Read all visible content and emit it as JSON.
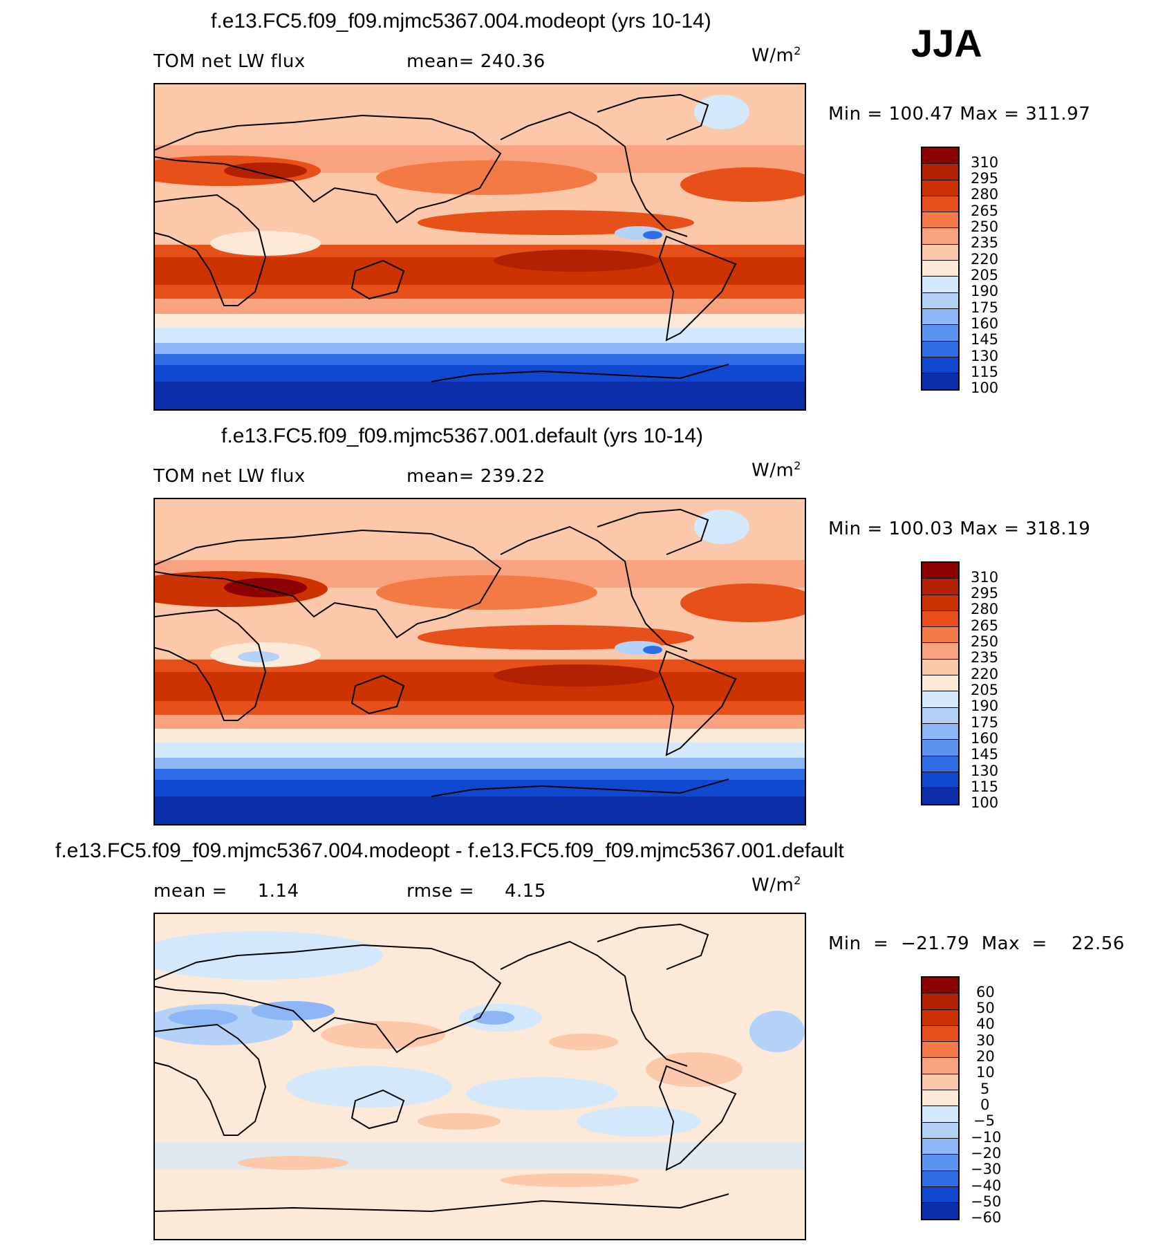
{
  "season": "JJA",
  "panels": [
    {
      "title": "f.e13.FC5.f09_f09.mjmc5367.004.modeopt (yrs 10-14)",
      "left_label": "TOM net LW flux",
      "center_label": "mean= 240.36",
      "units": "W/m",
      "units_sup": "2",
      "minmax": "Min  =  100.47  Max  =  311.97",
      "colorbar": {
        "labels": [
          "310",
          "295",
          "280",
          "265",
          "250",
          "235",
          "220",
          "205",
          "190",
          "175",
          "160",
          "145",
          "130",
          "115",
          "100"
        ],
        "colors": [
          "#8b0000",
          "#b22200",
          "#cc3300",
          "#e8501a",
          "#f47a45",
          "#f9a27f",
          "#fcc8aa",
          "#fde9d7",
          "#d3e8fa",
          "#b4d2f8",
          "#8cb6f5",
          "#5a93f0",
          "#2f6de6",
          "#1048d0",
          "#0a2fa8",
          "#061f80"
        ]
      }
    },
    {
      "title": "f.e13.FC5.f09_f09.mjmc5367.001.default (yrs 10-14)",
      "left_label": "TOM net LW flux",
      "center_label": "mean= 239.22",
      "units": "W/m",
      "units_sup": "2",
      "minmax": "Min  =  100.03  Max  =  318.19",
      "colorbar": {
        "labels": [
          "310",
          "295",
          "280",
          "265",
          "250",
          "235",
          "220",
          "205",
          "190",
          "175",
          "160",
          "145",
          "130",
          "115",
          "100"
        ],
        "colors": [
          "#8b0000",
          "#b22200",
          "#cc3300",
          "#e8501a",
          "#f47a45",
          "#f9a27f",
          "#fcc8aa",
          "#fde9d7",
          "#d3e8fa",
          "#b4d2f8",
          "#8cb6f5",
          "#5a93f0",
          "#2f6de6",
          "#1048d0",
          "#0a2fa8",
          "#061f80"
        ]
      }
    },
    {
      "title": "f.e13.FC5.f09_f09.mjmc5367.004.modeopt - f.e13.FC5.f09_f09.mjmc5367.001.default",
      "left_label": "mean =     1.14",
      "center_label": "rmse =     4.15",
      "units": "W/m",
      "units_sup": "2",
      "minmax": "Min  =  −21.79  Max  =    22.56",
      "colorbar": {
        "labels": [
          "60",
          "50",
          "40",
          "30",
          "20",
          "10",
          "5",
          "0",
          "−5",
          "−10",
          "−20",
          "−30",
          "−40",
          "−50",
          "−60"
        ],
        "colors": [
          "#8b0000",
          "#b22200",
          "#cc3300",
          "#e8501a",
          "#f47a45",
          "#f9a27f",
          "#fcc8aa",
          "#fde9d7",
          "#d3e8fa",
          "#b4d2f8",
          "#8cb6f5",
          "#5a93f0",
          "#2f6de6",
          "#1048d0",
          "#0a2fa8",
          "#061f80"
        ]
      }
    }
  ]
}
